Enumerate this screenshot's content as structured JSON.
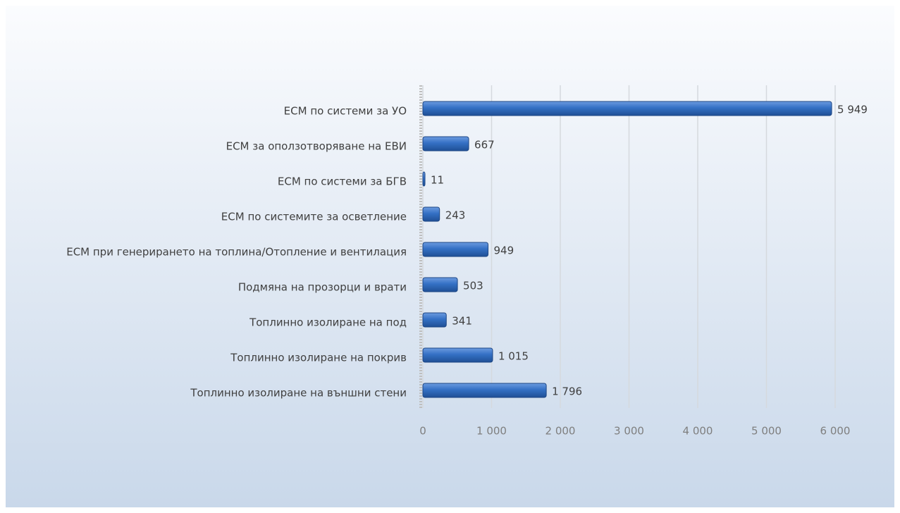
{
  "chart_data": {
    "type": "barh",
    "categories": [
      "ЕСМ по системи за УО",
      "ЕСМ за оползотворяване на ЕВИ",
      "ЕСМ по системи за БГВ",
      "ЕСМ по системите за осветление",
      "ЕСМ при генерирането на топлина/Отопление и вентилация",
      "Подмяна на прозорци и врати",
      "Топлинно изолиране на под",
      "Топлинно изолиране на покрив",
      "Топлинно изолиране на външни стени"
    ],
    "values": [
      5949,
      667,
      11,
      243,
      949,
      503,
      341,
      1015,
      1796
    ],
    "value_labels": [
      "5 949",
      "667",
      "11",
      "243",
      "949",
      "503",
      "341",
      "1 015",
      "1 796"
    ],
    "color": "#3470c4",
    "xlim": [
      0,
      6000
    ],
    "xticks": [
      0,
      {
        "value": 1000,
        "label": "1 000"
      },
      {
        "value": 2000,
        "label": "2 000"
      },
      {
        "value": 3000,
        "label": "3 000"
      },
      {
        "value": 4000,
        "label": "4 000"
      },
      {
        "value": 5000,
        "label": "5 000"
      },
      {
        "value": 6000,
        "label": "6 000"
      }
    ],
    "grid": true
  }
}
